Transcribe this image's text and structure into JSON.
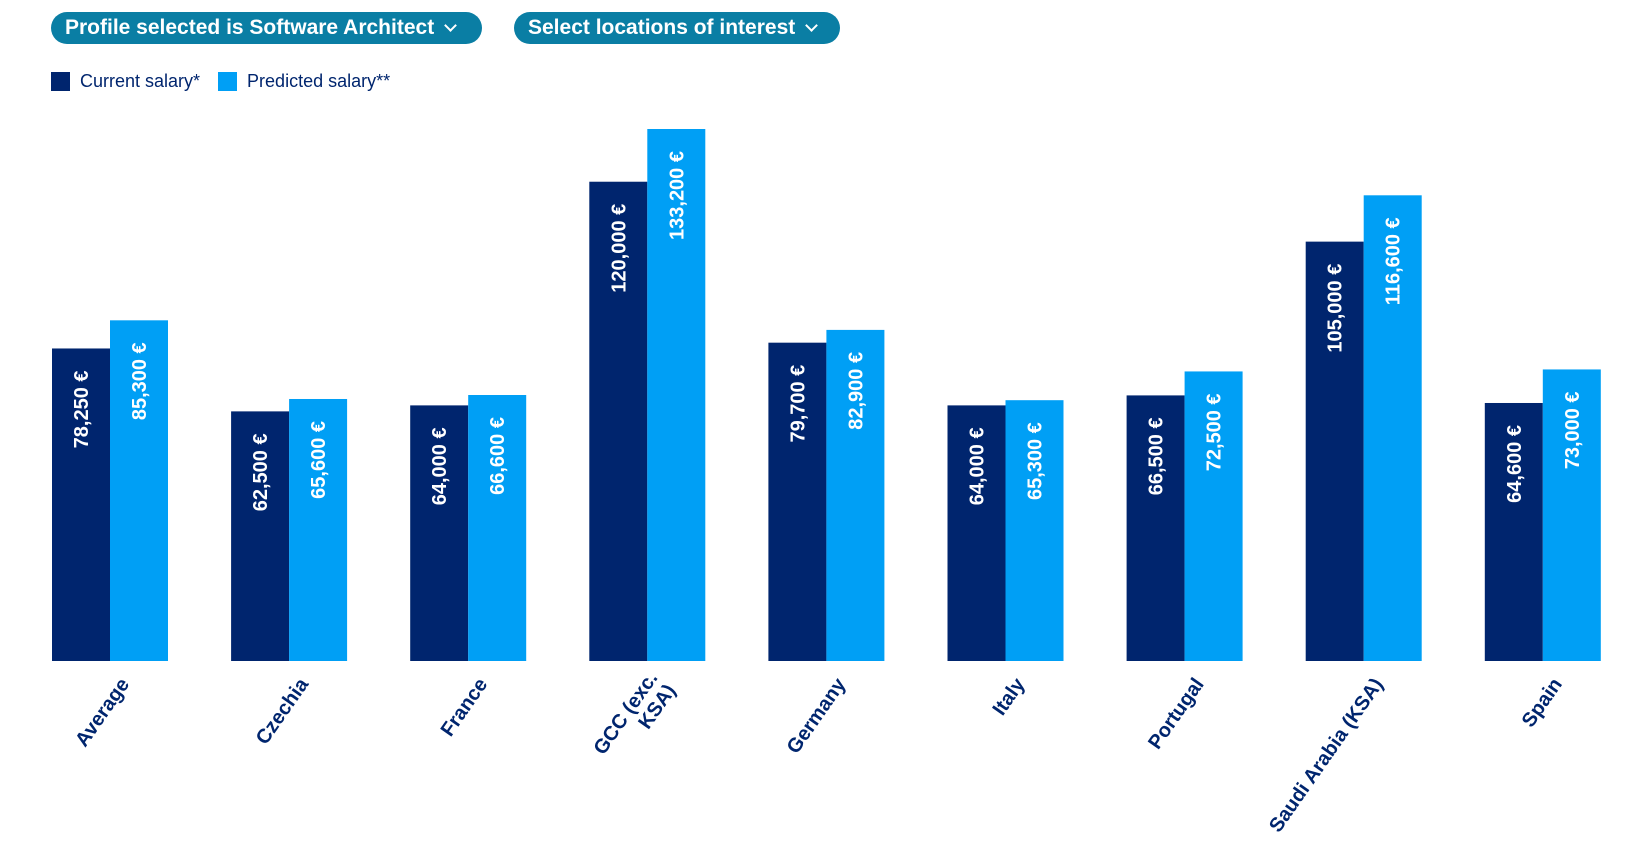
{
  "filters": {
    "profile": {
      "label": "Profile selected is Software Architect"
    },
    "locations": {
      "label": "Select locations of interest"
    }
  },
  "colors": {
    "current": "#00256e",
    "predicted": "#009ff5",
    "pill_bg": "#0a7ea4",
    "category_text": "#00256e",
    "legend_text": "#00256e",
    "bar_label": "#ffffff"
  },
  "chart_data": {
    "type": "bar",
    "categories": [
      "Average",
      "Czechia",
      "France",
      "GCC (exc. KSA)",
      "Germany",
      "Italy",
      "Portugal",
      "Saudi Arabia (KSA)",
      "Spain"
    ],
    "category_lines": [
      [
        "Average"
      ],
      [
        "Czechia"
      ],
      [
        "France"
      ],
      [
        "GCC (exc.",
        "KSA)"
      ],
      [
        "Germany"
      ],
      [
        "Italy"
      ],
      [
        "Portugal"
      ],
      [
        "Saudi Arabia (KSA)"
      ],
      [
        "Spain"
      ]
    ],
    "series": [
      {
        "name": "Current salary*",
        "values": [
          78250,
          62500,
          64000,
          120000,
          79700,
          64000,
          66500,
          105000,
          64600
        ],
        "labels": [
          "78,250 €",
          "62,500 €",
          "64,000 €",
          "120,000 €",
          "79,700 €",
          "64,000 €",
          "66,500 €",
          "105,000 €",
          "64,600 €"
        ]
      },
      {
        "name": "Predicted salary**",
        "values": [
          85300,
          65600,
          66600,
          133200,
          82900,
          65300,
          72500,
          116600,
          73000
        ],
        "labels": [
          "85,300 €",
          "65,600 €",
          "66,600 €",
          "133,200 €",
          "82,900 €",
          "65,300 €",
          "72,500 €",
          "116,600 €",
          "73,000 €"
        ]
      }
    ],
    "title": "",
    "xlabel": "",
    "ylabel": "",
    "ylim": [
      0,
      140000
    ],
    "legend": "top-left",
    "grid": false
  }
}
